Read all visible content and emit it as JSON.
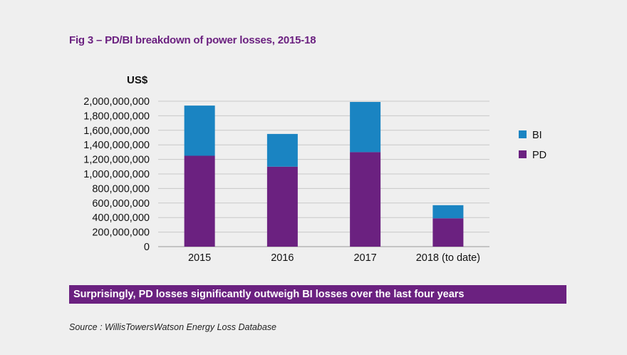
{
  "header": {
    "figure_title": "Fig 3 – PD/BI breakdown of power losses, 2015-18"
  },
  "callout": {
    "text": "Surprisingly, PD losses significantly outweigh BI losses over the last four years"
  },
  "footer": {
    "source": "Source : WillisTowersWatson Energy Loss Database"
  },
  "colors": {
    "pd": "#6b2180",
    "bi": "#1a84c2",
    "accent": "#6b2180",
    "grid": "#c8c8c8"
  },
  "chart_data": {
    "type": "bar",
    "stacked": true,
    "title": "Fig 3 – PD/BI breakdown of power losses, 2015-18",
    "ylabel": "US$",
    "xlabel": "",
    "categories": [
      "2015",
      "2016",
      "2017",
      "2018 (to date)"
    ],
    "series": [
      {
        "name": "PD",
        "values": [
          1250000000,
          1100000000,
          1300000000,
          390000000
        ],
        "color": "#6b2180"
      },
      {
        "name": "BI",
        "values": [
          690000000,
          450000000,
          690000000,
          180000000
        ],
        "color": "#1a84c2"
      }
    ],
    "ylim": [
      0,
      2000000000
    ],
    "yticks": [
      0,
      200000000,
      400000000,
      600000000,
      800000000,
      1000000000,
      1200000000,
      1400000000,
      1600000000,
      1800000000,
      2000000000
    ],
    "ytick_labels": [
      "0",
      "200,000,000",
      "400,000,000",
      "600,000,000",
      "800,000,000",
      "1,000,000,000",
      "1,200,000,000",
      "1,400,000,000",
      "1,600,000,000",
      "1,800,000,000",
      "2,000,000,000"
    ],
    "grid": true,
    "legend": {
      "position": "right",
      "entries": [
        "BI",
        "PD"
      ]
    }
  }
}
